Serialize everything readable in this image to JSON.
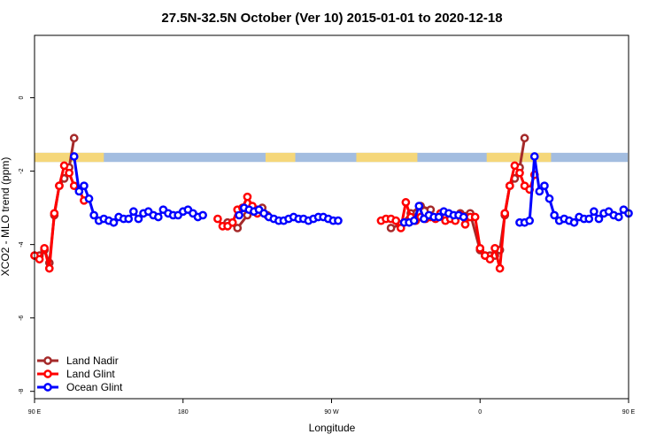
{
  "chart_data": {
    "type": "line",
    "title": "27.5N-32.5N October (Ver 10)   2015-01-01 to 2020-12-18",
    "xlabel": "Longitude",
    "ylabel": "XCO2 - MLO trend (ppm)",
    "xlim": [
      90,
      450
    ],
    "ylim": [
      -8.2,
      1.7
    ],
    "x_ticks": [
      {
        "value": 90,
        "label": "90 E"
      },
      {
        "value": 180,
        "label": "180"
      },
      {
        "value": 270,
        "label": "90 W"
      },
      {
        "value": 360,
        "label": "0"
      },
      {
        "value": 450,
        "label": "90 E"
      },
      {
        "value": 540,
        "label": "180"
      }
    ],
    "y_ticks": [
      {
        "value": 0,
        "label": "0"
      },
      {
        "value": -2,
        "label": "-2"
      },
      {
        "value": -4,
        "label": "-4"
      },
      {
        "value": -6,
        "label": "-6"
      },
      {
        "value": -8,
        "label": "-8"
      }
    ],
    "grid": false,
    "legend_position": "bottom-left",
    "colors": {
      "land_band": "#f5d77a",
      "ocean_band": "#a3bde0"
    },
    "series": [
      {
        "name": "Land Nadir",
        "color": "#a52a2a",
        "points": [
          [
            90,
            -4.3
          ],
          [
            93,
            -4.3
          ],
          [
            96,
            -4.15
          ],
          [
            99,
            -4.5
          ],
          [
            102,
            -3.2
          ],
          [
            105,
            -2.4
          ],
          [
            108,
            -2.2
          ],
          [
            111,
            -1.9
          ],
          [
            114,
            -1.1
          ],
          [
            207,
            -3.4
          ],
          [
            213,
            -3.55
          ],
          [
            219,
            -3.2
          ],
          [
            225,
            -3.05
          ],
          [
            228,
            -3.0
          ],
          [
            231,
            -3.2
          ],
          [
            306,
            -3.55
          ],
          [
            312,
            -3.45
          ],
          [
            318,
            -3.15
          ],
          [
            324,
            -2.95
          ],
          [
            330,
            -3.05
          ],
          [
            342,
            -3.2
          ],
          [
            348,
            -3.15
          ],
          [
            354,
            -3.15
          ],
          [
            360,
            -4.15
          ],
          [
            363,
            -4.3
          ],
          [
            366,
            -4.3
          ],
          [
            369,
            -4.3
          ],
          [
            372,
            -4.15
          ],
          [
            375,
            -3.2
          ],
          [
            378,
            -2.4
          ],
          [
            381,
            -2.2
          ],
          [
            384,
            -1.9
          ],
          [
            387,
            -1.1
          ]
        ]
      },
      {
        "name": "Land Glint",
        "color": "#ff0000",
        "points": [
          [
            90,
            -4.3
          ],
          [
            93,
            -4.4
          ],
          [
            96,
            -4.1
          ],
          [
            99,
            -4.65
          ],
          [
            102,
            -3.15
          ],
          [
            105,
            -2.4
          ],
          [
            108,
            -1.85
          ],
          [
            111,
            -2.05
          ],
          [
            114,
            -2.4
          ],
          [
            117,
            -2.5
          ],
          [
            120,
            -2.8
          ],
          [
            201,
            -3.3
          ],
          [
            204,
            -3.5
          ],
          [
            207,
            -3.5
          ],
          [
            210,
            -3.4
          ],
          [
            213,
            -3.05
          ],
          [
            216,
            -3.0
          ],
          [
            219,
            -2.7
          ],
          [
            222,
            -2.95
          ],
          [
            225,
            -3.15
          ],
          [
            300,
            -3.35
          ],
          [
            303,
            -3.3
          ],
          [
            306,
            -3.3
          ],
          [
            309,
            -3.35
          ],
          [
            312,
            -3.55
          ],
          [
            315,
            -2.85
          ],
          [
            318,
            -3.25
          ],
          [
            321,
            -3.35
          ],
          [
            324,
            -3.25
          ],
          [
            327,
            -3.3
          ],
          [
            330,
            -3.25
          ],
          [
            333,
            -3.3
          ],
          [
            336,
            -3.15
          ],
          [
            339,
            -3.35
          ],
          [
            342,
            -3.3
          ],
          [
            345,
            -3.35
          ],
          [
            348,
            -3.2
          ],
          [
            351,
            -3.45
          ],
          [
            354,
            -3.25
          ],
          [
            357,
            -3.25
          ],
          [
            360,
            -4.1
          ],
          [
            363,
            -4.3
          ],
          [
            366,
            -4.4
          ],
          [
            369,
            -4.1
          ],
          [
            372,
            -4.65
          ],
          [
            375,
            -3.15
          ],
          [
            378,
            -2.4
          ],
          [
            381,
            -1.85
          ],
          [
            384,
            -2.05
          ],
          [
            387,
            -2.4
          ],
          [
            390,
            -2.5
          ],
          [
            393,
            -2.1
          ]
        ]
      },
      {
        "name": "Ocean Glint",
        "color": "#0000ff",
        "points": [
          [
            114,
            -1.6
          ],
          [
            117,
            -2.55
          ],
          [
            120,
            -2.4
          ],
          [
            123,
            -2.75
          ],
          [
            126,
            -3.2
          ],
          [
            129,
            -3.35
          ],
          [
            132,
            -3.3
          ],
          [
            135,
            -3.35
          ],
          [
            138,
            -3.4
          ],
          [
            141,
            -3.25
          ],
          [
            144,
            -3.3
          ],
          [
            147,
            -3.3
          ],
          [
            150,
            -3.1
          ],
          [
            153,
            -3.3
          ],
          [
            156,
            -3.15
          ],
          [
            159,
            -3.1
          ],
          [
            162,
            -3.2
          ],
          [
            165,
            -3.25
          ],
          [
            168,
            -3.05
          ],
          [
            171,
            -3.15
          ],
          [
            174,
            -3.2
          ],
          [
            177,
            -3.2
          ],
          [
            180,
            -3.1
          ],
          [
            183,
            -3.05
          ],
          [
            186,
            -3.15
          ],
          [
            189,
            -3.25
          ],
          [
            192,
            -3.2
          ],
          [
            214,
            -3.2
          ],
          [
            217,
            -3.0
          ],
          [
            220,
            -3.05
          ],
          [
            223,
            -3.1
          ],
          [
            226,
            -3.05
          ],
          [
            229,
            -3.15
          ],
          [
            232,
            -3.25
          ],
          [
            235,
            -3.3
          ],
          [
            238,
            -3.35
          ],
          [
            241,
            -3.35
          ],
          [
            244,
            -3.3
          ],
          [
            247,
            -3.25
          ],
          [
            250,
            -3.3
          ],
          [
            253,
            -3.3
          ],
          [
            256,
            -3.35
          ],
          [
            259,
            -3.3
          ],
          [
            262,
            -3.25
          ],
          [
            265,
            -3.25
          ],
          [
            268,
            -3.3
          ],
          [
            271,
            -3.35
          ],
          [
            274,
            -3.35
          ],
          [
            314,
            -3.4
          ],
          [
            317,
            -3.4
          ],
          [
            320,
            -3.35
          ],
          [
            323,
            -2.95
          ],
          [
            326,
            -3.3
          ],
          [
            329,
            -3.2
          ],
          [
            332,
            -3.25
          ],
          [
            335,
            -3.25
          ],
          [
            338,
            -3.1
          ],
          [
            341,
            -3.15
          ],
          [
            344,
            -3.2
          ],
          [
            347,
            -3.2
          ],
          [
            350,
            -3.25
          ],
          [
            384,
            -3.4
          ],
          [
            387,
            -3.4
          ],
          [
            390,
            -3.35
          ],
          [
            393,
            -1.6
          ],
          [
            396,
            -2.55
          ],
          [
            399,
            -2.4
          ],
          [
            402,
            -2.75
          ],
          [
            405,
            -3.2
          ],
          [
            408,
            -3.35
          ],
          [
            411,
            -3.3
          ],
          [
            414,
            -3.35
          ],
          [
            417,
            -3.4
          ],
          [
            420,
            -3.25
          ],
          [
            423,
            -3.3
          ],
          [
            426,
            -3.3
          ],
          [
            429,
            -3.1
          ],
          [
            432,
            -3.3
          ],
          [
            435,
            -3.15
          ],
          [
            438,
            -3.1
          ],
          [
            441,
            -3.2
          ],
          [
            444,
            -3.25
          ],
          [
            447,
            -3.05
          ],
          [
            450,
            -3.15
          ]
        ]
      }
    ]
  }
}
